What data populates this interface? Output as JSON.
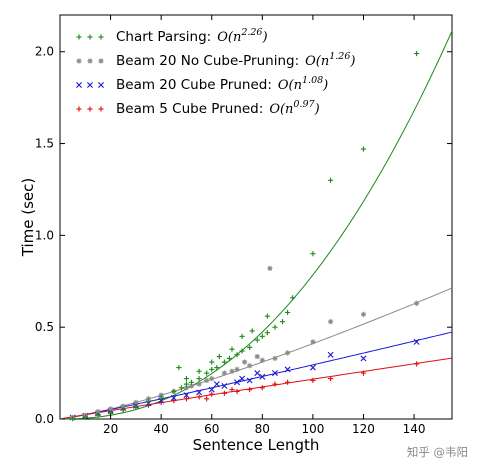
{
  "chart_data": {
    "type": "scatter",
    "title": "",
    "xlabel": "Sentence Length",
    "ylabel": "Time (sec)",
    "xlim": [
      0,
      155
    ],
    "ylim": [
      0,
      2.2
    ],
    "x_ticks": [
      "20",
      "40",
      "60",
      "80",
      "100",
      "120",
      "140"
    ],
    "y_ticks": [
      "0.0",
      "0.5",
      "1.0",
      "1.5",
      "2.0"
    ],
    "legend_position": "top-left",
    "grid": false,
    "series": [
      {
        "name": "Chart Parsing:",
        "complexity_base": "O(n",
        "complexity_exp": "2.26",
        "color": "#1a8a1a",
        "marker": "+",
        "fit_exponent": 2.26,
        "fit_scale": 2.37e-05,
        "points": [
          [
            5,
            0.002
          ],
          [
            10,
            0.01
          ],
          [
            15,
            0.021
          ],
          [
            20,
            0.03
          ],
          [
            25,
            0.05
          ],
          [
            30,
            0.07
          ],
          [
            35,
            0.095
          ],
          [
            40,
            0.12
          ],
          [
            45,
            0.15
          ],
          [
            48,
            0.17
          ],
          [
            50,
            0.19
          ],
          [
            52,
            0.2
          ],
          [
            55,
            0.22
          ],
          [
            58,
            0.25
          ],
          [
            60,
            0.27
          ],
          [
            62,
            0.28
          ],
          [
            65,
            0.31
          ],
          [
            67,
            0.33
          ],
          [
            70,
            0.35
          ],
          [
            72,
            0.37
          ],
          [
            75,
            0.39
          ],
          [
            78,
            0.43
          ],
          [
            80,
            0.45
          ],
          [
            82,
            0.47
          ],
          [
            85,
            0.5
          ],
          [
            88,
            0.53
          ],
          [
            90,
            0.58
          ],
          [
            100,
            0.9
          ],
          [
            107,
            1.3
          ],
          [
            120,
            1.47
          ],
          [
            141,
            1.99
          ],
          [
            47,
            0.28
          ],
          [
            50,
            0.22
          ],
          [
            55,
            0.26
          ],
          [
            60,
            0.31
          ],
          [
            63,
            0.34
          ],
          [
            68,
            0.38
          ],
          [
            72,
            0.45
          ],
          [
            76,
            0.48
          ],
          [
            82,
            0.56
          ],
          [
            92,
            0.66
          ]
        ]
      },
      {
        "name": "Beam 20 No Cube-Pruning:",
        "complexity_base": "O(n",
        "complexity_exp": "1.26",
        "color": "#8c8c8c",
        "marker": "*",
        "fit_exponent": 1.26,
        "fit_scale": 0.00124,
        "points": [
          [
            5,
            0.008
          ],
          [
            10,
            0.02
          ],
          [
            15,
            0.04
          ],
          [
            20,
            0.055
          ],
          [
            25,
            0.07
          ],
          [
            30,
            0.09
          ],
          [
            35,
            0.11
          ],
          [
            40,
            0.13
          ],
          [
            45,
            0.15
          ],
          [
            50,
            0.17
          ],
          [
            55,
            0.19
          ],
          [
            60,
            0.22
          ],
          [
            65,
            0.25
          ],
          [
            70,
            0.27
          ],
          [
            75,
            0.29
          ],
          [
            80,
            0.32
          ],
          [
            85,
            0.33
          ],
          [
            90,
            0.36
          ],
          [
            100,
            0.42
          ],
          [
            107,
            0.53
          ],
          [
            120,
            0.57
          ],
          [
            141,
            0.63
          ],
          [
            83,
            0.82
          ],
          [
            52,
            0.18
          ],
          [
            58,
            0.21
          ],
          [
            68,
            0.26
          ],
          [
            73,
            0.31
          ],
          [
            78,
            0.34
          ]
        ]
      },
      {
        "name": "Beam 20 Cube Pruned:",
        "complexity_base": "O(n",
        "complexity_exp": "1.08",
        "color": "#1a1ad6",
        "marker": "x",
        "fit_exponent": 1.08,
        "fit_scale": 0.00204,
        "points": [
          [
            5,
            0.008
          ],
          [
            10,
            0.018
          ],
          [
            15,
            0.03
          ],
          [
            20,
            0.045
          ],
          [
            25,
            0.06
          ],
          [
            30,
            0.072
          ],
          [
            35,
            0.085
          ],
          [
            40,
            0.1
          ],
          [
            45,
            0.115
          ],
          [
            50,
            0.13
          ],
          [
            55,
            0.145
          ],
          [
            60,
            0.16
          ],
          [
            65,
            0.18
          ],
          [
            70,
            0.2
          ],
          [
            75,
            0.21
          ],
          [
            80,
            0.23
          ],
          [
            85,
            0.25
          ],
          [
            90,
            0.27
          ],
          [
            100,
            0.28
          ],
          [
            107,
            0.35
          ],
          [
            120,
            0.33
          ],
          [
            141,
            0.42
          ],
          [
            62,
            0.19
          ],
          [
            72,
            0.22
          ],
          [
            78,
            0.25
          ]
        ]
      },
      {
        "name": "Beam 5 Cube Pruned:",
        "complexity_base": "O(n",
        "complexity_exp": "0.97",
        "color": "#e01010",
        "marker": "+",
        "fit_exponent": 0.97,
        "fit_scale": 0.00249,
        "points": [
          [
            5,
            0.005
          ],
          [
            10,
            0.015
          ],
          [
            15,
            0.025
          ],
          [
            20,
            0.04
          ],
          [
            25,
            0.05
          ],
          [
            30,
            0.065
          ],
          [
            35,
            0.075
          ],
          [
            40,
            0.09
          ],
          [
            45,
            0.1
          ],
          [
            50,
            0.11
          ],
          [
            55,
            0.12
          ],
          [
            60,
            0.135
          ],
          [
            65,
            0.14
          ],
          [
            70,
            0.15
          ],
          [
            75,
            0.16
          ],
          [
            80,
            0.17
          ],
          [
            85,
            0.19
          ],
          [
            90,
            0.2
          ],
          [
            100,
            0.21
          ],
          [
            107,
            0.22
          ],
          [
            120,
            0.25
          ],
          [
            141,
            0.3
          ],
          [
            58,
            0.11
          ],
          [
            68,
            0.16
          ]
        ]
      }
    ]
  },
  "watermark": "知乎 @韦阳"
}
